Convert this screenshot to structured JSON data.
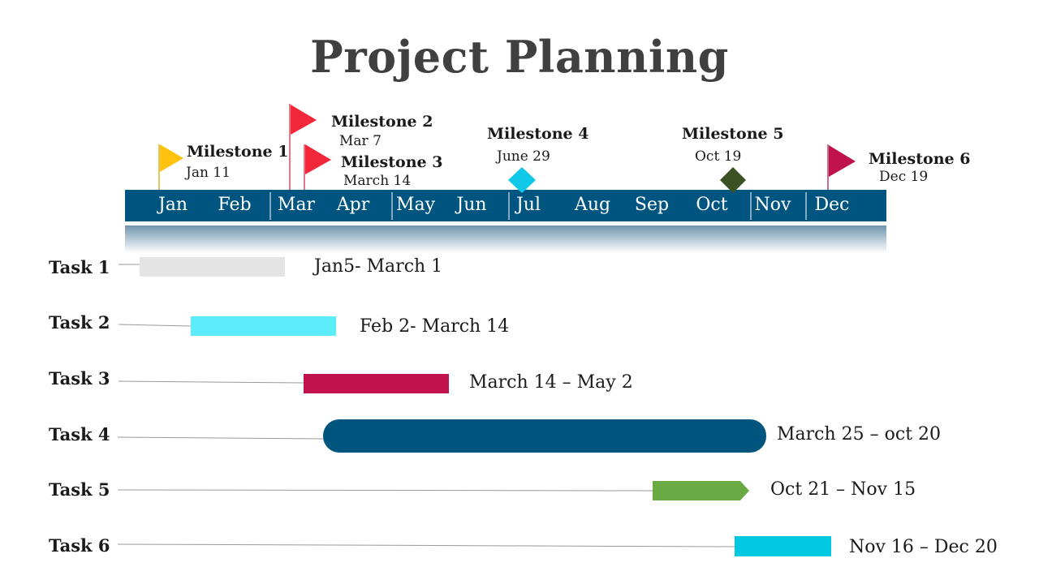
{
  "title": "Project Planning",
  "months": [
    "Jan",
    "Feb",
    "Mar",
    "Apr",
    "May",
    "Jun",
    "Jul",
    "Aug",
    "Sep",
    "Oct",
    "Nov",
    "Dec"
  ],
  "milestones": [
    {
      "name": "Milestone 1",
      "date": "Jan 11",
      "marker": "flag-icon",
      "color": "#FFC20E"
    },
    {
      "name": "Milestone 2",
      "date": "Mar 7",
      "marker": "flag-icon",
      "color": "#F2273A"
    },
    {
      "name": "Milestone 3",
      "date": "March 14",
      "marker": "flag-icon",
      "color": "#F2273A"
    },
    {
      "name": "Milestone 4",
      "date": "June 29",
      "marker": "diamond-icon",
      "color": "#12C8E8"
    },
    {
      "name": "Milestone 5",
      "date": "Oct 19",
      "marker": "diamond-icon",
      "color": "#3A5224"
    },
    {
      "name": "Milestone 6",
      "date": "Dec 19",
      "marker": "flag-icon",
      "color": "#C0124D"
    }
  ],
  "tasks": [
    {
      "label": "Task 1",
      "range": "Jan5- March 1",
      "color": "#E4E4E4",
      "shape": "rect"
    },
    {
      "label": "Task 2",
      "range": "Feb 2- March 14",
      "color": "#5BEEFA",
      "shape": "rect"
    },
    {
      "label": "Task 3",
      "range": "March 14 – May 2",
      "color": "#C0124D",
      "shape": "rect"
    },
    {
      "label": "Task 4",
      "range": "March 25 – oct 20",
      "color": "#00557F",
      "shape": "rounded"
    },
    {
      "label": "Task 5",
      "range": "Oct 21 – Nov 15",
      "color": "#6AAA43",
      "shape": "arrow"
    },
    {
      "label": "Task 6",
      "range": "Nov 16 – Dec 20",
      "color": "#00C8E3",
      "shape": "rect"
    }
  ],
  "colors": {
    "timeline_bar": "#005580",
    "title": "#404040"
  }
}
